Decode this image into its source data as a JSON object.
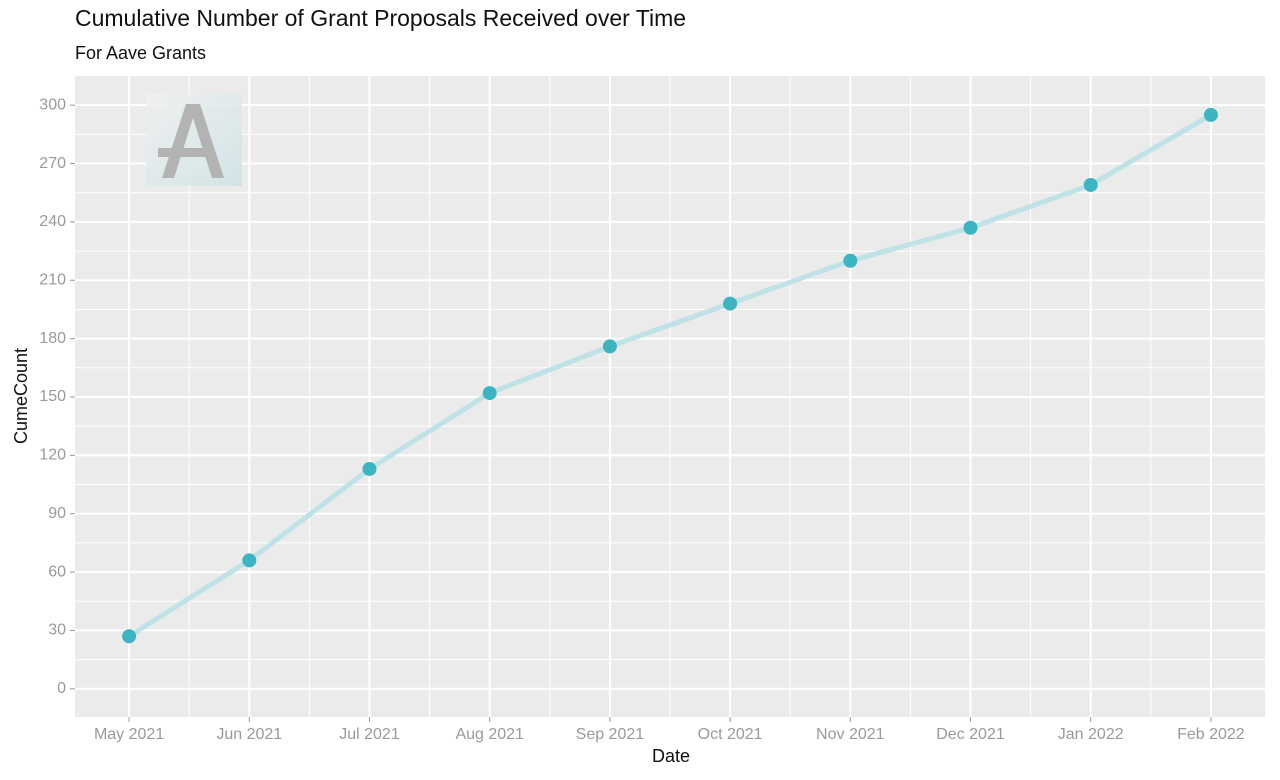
{
  "chart_data": {
    "type": "line",
    "title": "Cumulative Number of Grant Proposals Received over Time",
    "subtitle": "For Aave Grants",
    "x_label": "Date",
    "y_label": "CumeCount",
    "x": [
      "May 2021",
      "Jun 2021",
      "Jul 2021",
      "Aug 2021",
      "Sep 2021",
      "Oct 2021",
      "Nov 2021",
      "Dec 2021",
      "Jan 2022",
      "Feb 2022"
    ],
    "series": [
      {
        "line_color": "#bfe2e7",
        "color": "#3db4c1",
        "values": [
          27,
          66,
          113,
          152,
          176,
          198,
          220,
          237,
          259,
          295
        ]
      }
    ],
    "ylim": [
      -14.5,
      315
    ],
    "yticks": [
      0,
      30,
      60,
      90,
      120,
      150,
      180,
      210,
      240,
      270,
      300
    ],
    "grid": true
  }
}
